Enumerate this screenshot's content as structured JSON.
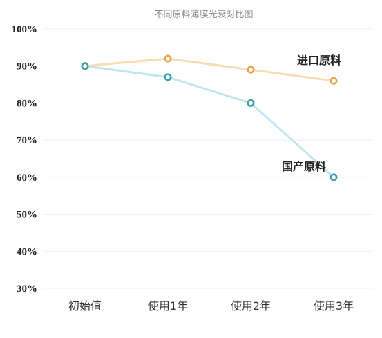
{
  "chart_data": {
    "type": "line",
    "title": "不同原料薄膜光衰对比图",
    "categories": [
      "初始值",
      "使用1年",
      "使用2年",
      "使用3年"
    ],
    "yticks": [
      "30%",
      "40%",
      "50%",
      "60%",
      "70%",
      "80%",
      "90%",
      "100%"
    ],
    "ylim": [
      30,
      100
    ],
    "grid": true,
    "series": [
      {
        "name": "进口原料",
        "values": [
          90,
          92,
          89,
          86
        ],
        "line_color": "#f9dcb3",
        "marker_color": "#e8a24a"
      },
      {
        "name": "国产原料",
        "values": [
          90,
          87,
          80,
          60
        ],
        "line_color": "#bfe6ec",
        "marker_color": "#3f9ea8"
      }
    ]
  }
}
